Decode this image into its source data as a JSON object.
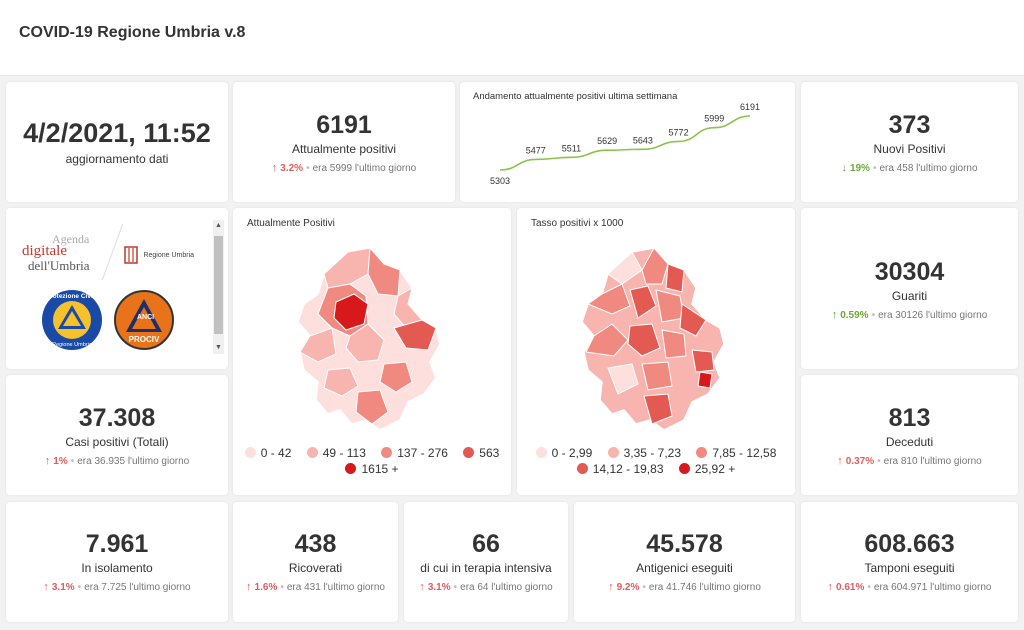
{
  "app": {
    "title": "COVID-19 Regione Umbria v.8"
  },
  "update": {
    "datetime": "4/2/2021, 11:52",
    "label": "aggiornamento dati"
  },
  "positivi": {
    "value": "6191",
    "label": "Attualmente positivi",
    "pct": "3.2%",
    "prev": "era 5999 l'ultimo giorno",
    "direction": "up"
  },
  "trend_chart": {
    "title": "Andamento attualmente positivi ultima settimana",
    "chart_data": {
      "type": "line",
      "title": "Andamento attualmente positivi ultima settimana",
      "values": [
        5303,
        5477,
        5511,
        5629,
        5643,
        5772,
        5999,
        6191
      ],
      "labels": [
        "5303",
        "5477",
        "5511",
        "5629",
        "5643",
        "5772",
        "5999",
        "6191"
      ],
      "line_color": "#8bc34a"
    }
  },
  "nuovi": {
    "value": "373",
    "label": "Nuovi Positivi",
    "pct": "19%",
    "prev": "era 458 l'ultimo giorno",
    "direction": "down"
  },
  "logos": {
    "agenda_line1": "Agenda",
    "agenda_line2": "digitale",
    "agenda_line3": "dell'Umbria",
    "regione": "Regione Umbria",
    "protezione_top": "Protezione Civile",
    "protezione_bottom": "Regione Umbria",
    "anci_top": "ANCI",
    "anci_bottom": "PROCIV"
  },
  "map_positivi": {
    "title": "Attualmente Positivi",
    "legend": [
      {
        "label": "0 - 42",
        "color": "#fde0dd"
      },
      {
        "label": "49 - 113",
        "color": "#f8b4ae"
      },
      {
        "label": "137 - 276",
        "color": "#f08a80"
      },
      {
        "label": "563",
        "color": "#e35a52"
      },
      {
        "label": "1615 +",
        "color": "#d7191c"
      }
    ]
  },
  "map_tasso": {
    "title": "Tasso positivi x 1000",
    "legend": [
      {
        "label": "0 - 2,99",
        "color": "#fde0dd"
      },
      {
        "label": "3,35 - 7,23",
        "color": "#f8b4ae"
      },
      {
        "label": "7,85 - 12,58",
        "color": "#f08a80"
      },
      {
        "label": "14,12 - 19,83",
        "color": "#e35a52"
      },
      {
        "label": "25,92 +",
        "color": "#d7191c"
      }
    ]
  },
  "guariti": {
    "value": "30304",
    "label": "Guariti",
    "pct": "0.59%",
    "prev": "era 30126 l'ultimo giorno",
    "direction": "up_green"
  },
  "casi": {
    "value": "37.308",
    "label": "Casi positivi (Totali)",
    "pct": "1%",
    "prev": "era 36.935 l'ultimo giorno",
    "direction": "up"
  },
  "deceduti": {
    "value": "813",
    "label": "Deceduti",
    "pct": "0.37%",
    "prev": "era 810 l'ultimo giorno",
    "direction": "up"
  },
  "isolamento": {
    "value": "7.961",
    "label": "In isolamento",
    "pct": "3.1%",
    "prev": "era 7.725 l'ultimo giorno",
    "direction": "up"
  },
  "ricoverati": {
    "value": "438",
    "label": "Ricoverati",
    "pct": "1.6%",
    "prev": "era 431 l'ultimo giorno",
    "direction": "up"
  },
  "terapia": {
    "value": "66",
    "label": "di cui in terapia intensiva",
    "pct": "3.1%",
    "prev": "era 64 l'ultimo giorno",
    "direction": "up"
  },
  "antigenici": {
    "value": "45.578",
    "label": "Antigenici eseguiti",
    "pct": "9.2%",
    "prev": "era 41.746 l'ultimo giorno",
    "direction": "up"
  },
  "tamponi": {
    "value": "608.663",
    "label": "Tamponi eseguiti",
    "pct": "0.61%",
    "prev": "era 604.971 l'ultimo giorno",
    "direction": "up"
  },
  "icons": {
    "arrow_up": "↑",
    "arrow_down": "↓",
    "dot": "•"
  }
}
